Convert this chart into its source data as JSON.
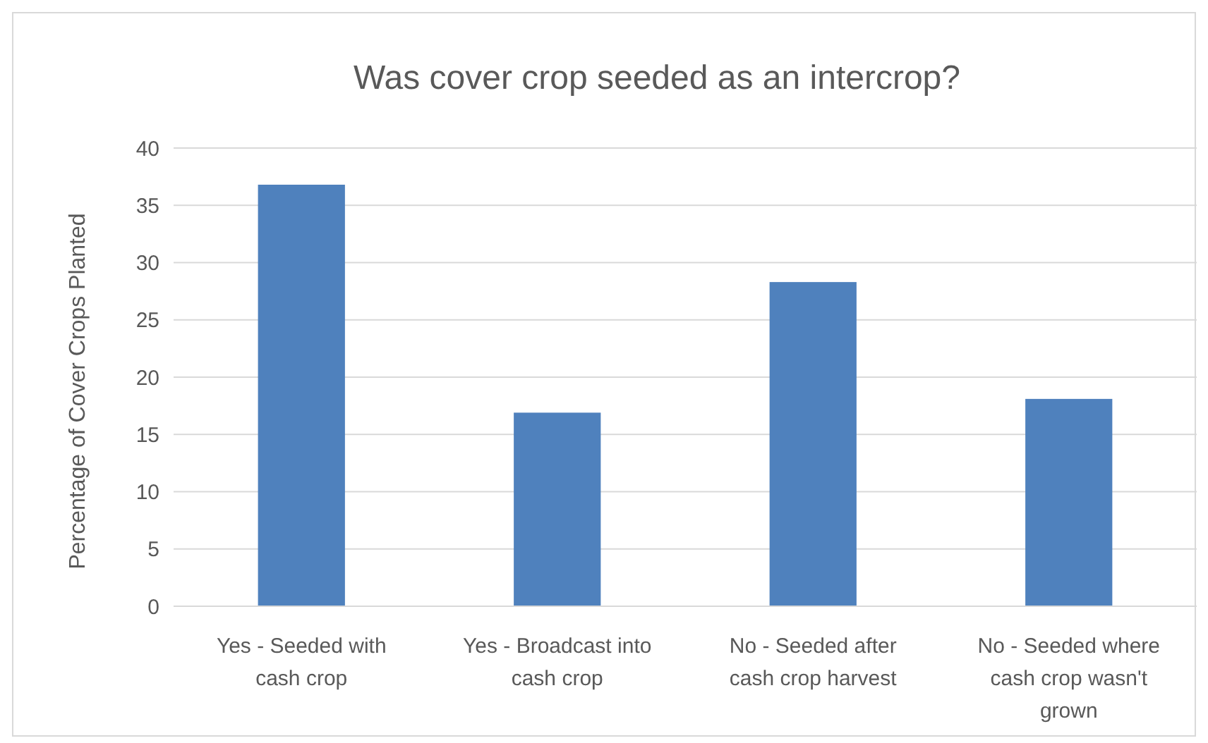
{
  "chart_data": {
    "type": "bar",
    "title": "Was cover crop seeded as an intercrop?",
    "ylabel": "Percentage of Cover Crops Planted",
    "categories": [
      "Yes - Seeded with cash crop",
      "Yes - Broadcast into cash crop",
      "No - Seeded after cash crop harvest",
      "No - Seeded where cash crop wasn't grown"
    ],
    "values": [
      36.8,
      16.9,
      28.3,
      18.1
    ],
    "color": "#4f81bd",
    "ylim": [
      0,
      40
    ],
    "yticks": [
      0,
      5,
      10,
      15,
      20,
      25,
      30,
      35,
      40
    ],
    "grid": "y"
  }
}
